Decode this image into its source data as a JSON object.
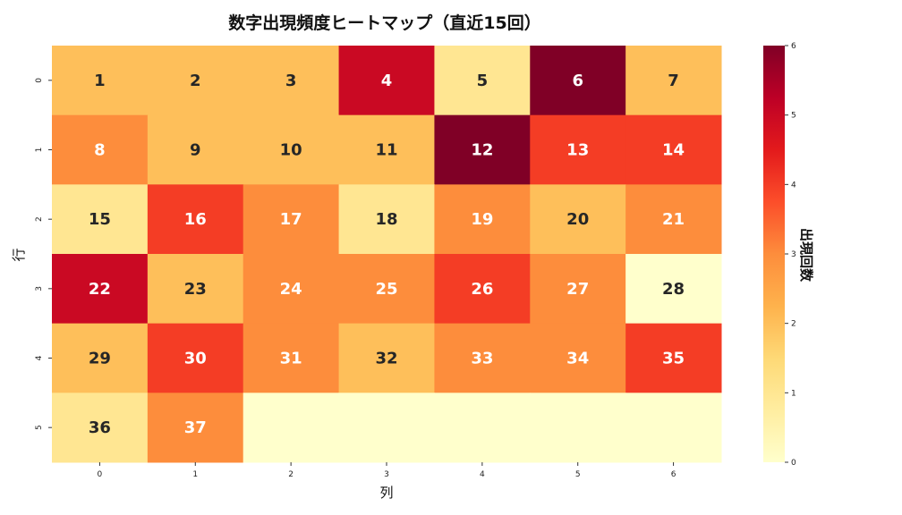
{
  "chart_data": {
    "type": "heatmap",
    "title": "数字出現頻度ヒートマップ（直近15回）",
    "xlabel": "列",
    "ylabel": "行",
    "colorbar_label": "出現回数",
    "x_ticks": [
      "0",
      "1",
      "2",
      "3",
      "4",
      "5",
      "6"
    ],
    "y_ticks": [
      "0",
      "1",
      "2",
      "3",
      "4",
      "5"
    ],
    "colorbar_ticks": [
      "0",
      "1",
      "2",
      "3",
      "4",
      "5",
      "6"
    ],
    "vmin": 0,
    "vmax": 6,
    "colormap": "YlOrRd",
    "colormap_stops": [
      "#ffffcc",
      "#ffeda0",
      "#fed976",
      "#feb24c",
      "#fd8d3c",
      "#fc4e2a",
      "#e31a1c",
      "#bd0026",
      "#800026"
    ],
    "annotations": [
      [
        "1",
        "2",
        "3",
        "4",
        "5",
        "6",
        "7"
      ],
      [
        "8",
        "9",
        "10",
        "11",
        "12",
        "13",
        "14"
      ],
      [
        "15",
        "16",
        "17",
        "18",
        "19",
        "20",
        "21"
      ],
      [
        "22",
        "23",
        "24",
        "25",
        "26",
        "27",
        "28"
      ],
      [
        "29",
        "30",
        "31",
        "32",
        "33",
        "34",
        "35"
      ],
      [
        "36",
        "37",
        "",
        "",
        "",
        "",
        ""
      ]
    ],
    "values": [
      [
        2,
        2,
        2,
        5,
        1,
        6,
        2
      ],
      [
        3,
        2,
        2,
        2,
        6,
        4,
        4
      ],
      [
        1,
        4,
        3,
        1,
        3,
        2,
        3
      ],
      [
        5,
        2,
        3,
        3,
        4,
        3,
        0
      ],
      [
        2,
        4,
        3,
        2,
        3,
        3,
        4
      ],
      [
        1,
        3,
        0,
        0,
        0,
        0,
        0
      ]
    ]
  }
}
